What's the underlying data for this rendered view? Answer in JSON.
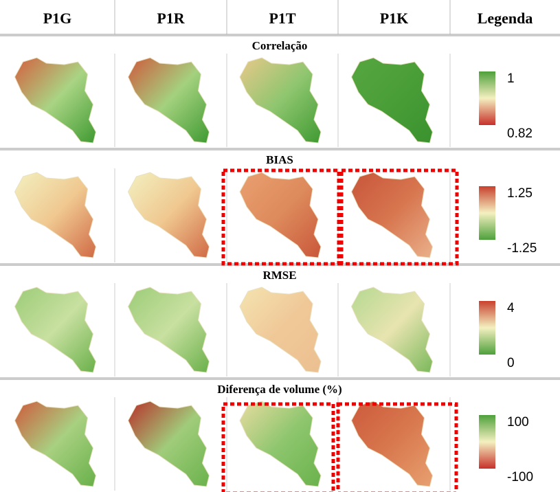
{
  "header": {
    "columns": [
      "P1G",
      "P1R",
      "P1T",
      "P1K",
      "Legenda"
    ]
  },
  "sections": [
    {
      "title": "Correlação",
      "legend": {
        "max": "1",
        "min": "0.82"
      }
    },
    {
      "title": "BIAS",
      "legend": {
        "max": "1.25",
        "min": "-1.25"
      }
    },
    {
      "title": "RMSE",
      "legend": {
        "max": "4",
        "min": "0"
      }
    },
    {
      "title": "Diferença de volume (%)",
      "legend": {
        "max": "100",
        "min": "-100"
      }
    }
  ]
}
